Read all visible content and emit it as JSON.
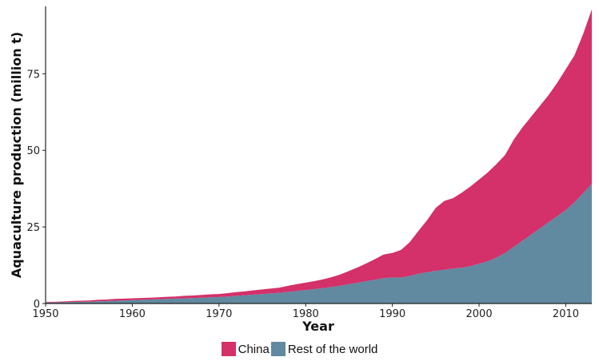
{
  "chart_data": {
    "type": "area",
    "stacked": true,
    "xlabel": "Year",
    "ylabel": "Aquaculture production (million t)",
    "xlim": [
      1950,
      2013
    ],
    "ylim": [
      0,
      97
    ],
    "x_ticks": [
      1950,
      1960,
      1970,
      1980,
      1990,
      2000,
      2010
    ],
    "y_ticks": [
      0,
      25,
      50,
      75
    ],
    "grid": false,
    "legend_position": "bottom",
    "x": [
      1950,
      1951,
      1952,
      1953,
      1954,
      1955,
      1956,
      1957,
      1958,
      1959,
      1960,
      1961,
      1962,
      1963,
      1964,
      1965,
      1966,
      1967,
      1968,
      1969,
      1970,
      1971,
      1972,
      1973,
      1974,
      1975,
      1976,
      1977,
      1978,
      1979,
      1980,
      1981,
      1982,
      1983,
      1984,
      1985,
      1986,
      1987,
      1988,
      1989,
      1990,
      1991,
      1992,
      1993,
      1994,
      1995,
      1996,
      1997,
      1998,
      1999,
      2000,
      2001,
      2002,
      2003,
      2004,
      2005,
      2006,
      2007,
      2008,
      2009,
      2010,
      2011,
      2012,
      2013
    ],
    "series": [
      {
        "name": "Rest of the world",
        "color": "#6189a0",
        "values": [
          0.3,
          0.35,
          0.4,
          0.5,
          0.55,
          0.6,
          0.7,
          0.8,
          0.9,
          1.0,
          1.1,
          1.2,
          1.3,
          1.4,
          1.5,
          1.6,
          1.7,
          1.8,
          1.9,
          2.0,
          2.1,
          2.3,
          2.5,
          2.7,
          2.9,
          3.1,
          3.3,
          3.5,
          3.8,
          4.1,
          4.4,
          4.7,
          5.0,
          5.4,
          5.8,
          6.3,
          6.8,
          7.3,
          7.8,
          8.3,
          8.5,
          8.5,
          9.0,
          9.7,
          10.2,
          10.7,
          11.0,
          11.4,
          11.7,
          12.2,
          13.0,
          13.8,
          15.0,
          16.5,
          18.5,
          20.5,
          22.5,
          24.5,
          26.5,
          28.5,
          30.5,
          33.0,
          36.0,
          39.0
        ]
      },
      {
        "name": "China",
        "color": "#d4306a",
        "values": [
          0.2,
          0.2,
          0.25,
          0.3,
          0.35,
          0.4,
          0.5,
          0.5,
          0.6,
          0.6,
          0.6,
          0.6,
          0.6,
          0.6,
          0.7,
          0.7,
          0.8,
          0.8,
          0.9,
          1.0,
          1.0,
          1.1,
          1.2,
          1.3,
          1.4,
          1.5,
          1.6,
          1.7,
          2.0,
          2.2,
          2.4,
          2.6,
          2.9,
          3.2,
          3.7,
          4.3,
          5.0,
          5.8,
          6.7,
          7.7,
          8.0,
          9.0,
          11.0,
          14.0,
          17.0,
          20.5,
          22.5,
          23.0,
          24.5,
          26.0,
          27.5,
          29.0,
          30.5,
          32.0,
          35.0,
          37.0,
          38.5,
          40.0,
          41.5,
          43.5,
          46.0,
          48.0,
          52.0,
          57.0
        ]
      }
    ]
  }
}
